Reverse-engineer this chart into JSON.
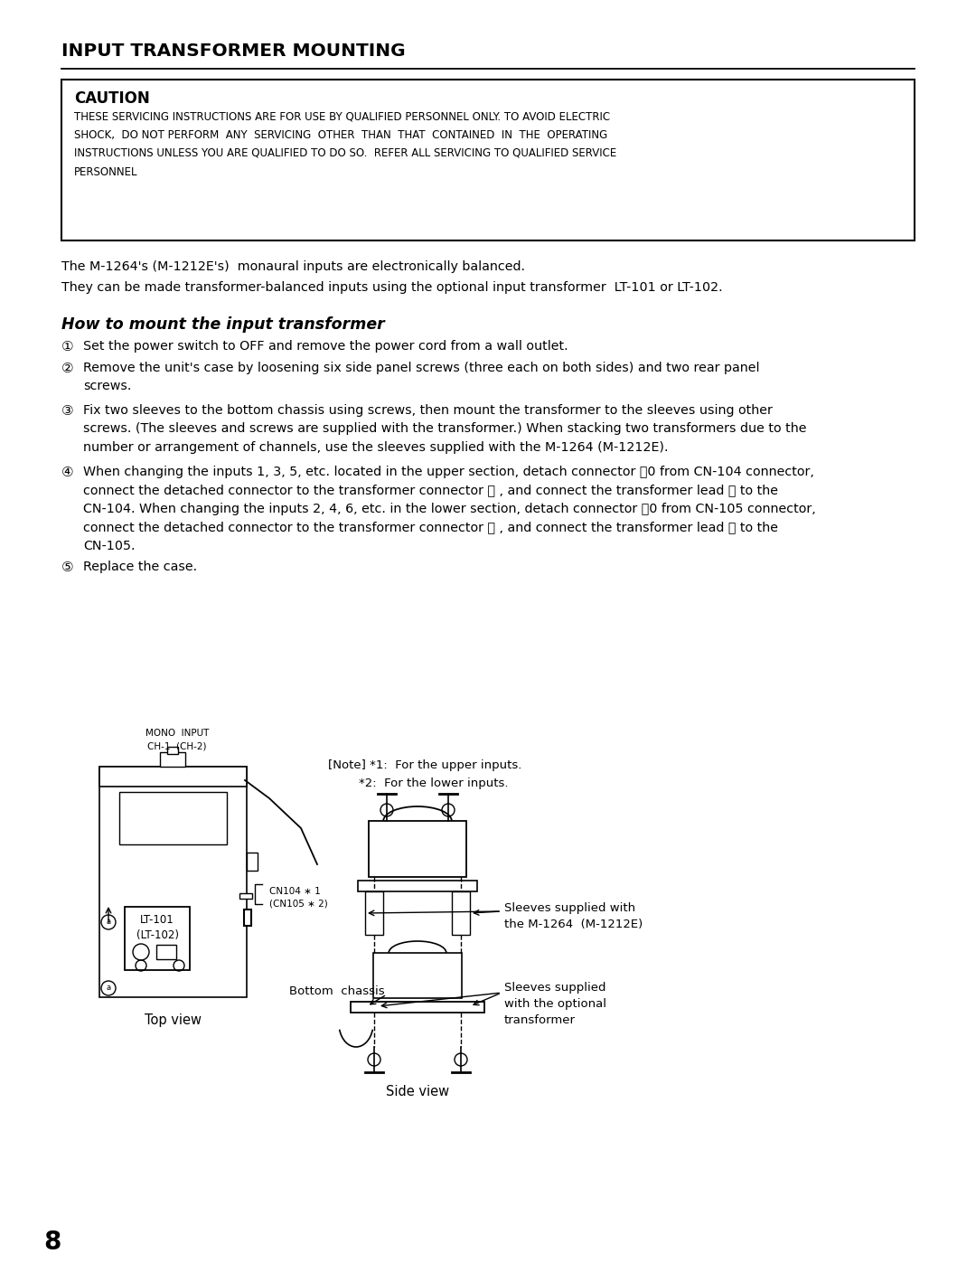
{
  "title": "INPUT TRANSFORMER MOUNTING",
  "caution_title": "CAUTION",
  "caution_body": "THESE SERVICING INSTRUCTIONS ARE FOR USE BY QUALIFIED PERSONNEL ONLY. TO AVOID ELECTRIC\nSHOCK,  DO NOT PERFORM  ANY  SERVICING  OTHER  THAN  THAT  CONTAINED  IN  THE  OPERATING\nINSTRUCTIONS UNLESS YOU ARE QUALIFIED TO DO SO.  REFER ALL SERVICING TO QUALIFIED SERVICE\nPERSONNEL",
  "intro1": "The M-1264's (M-1212E's)  monaural inputs are electronically balanced.",
  "intro2": "They can be made transformer-balanced inputs using the optional input transformer  LT-101 or LT-102.",
  "section_title": "How to mount the input transformer",
  "step1": "Set the power switch to OFF and remove the power cord from a wall outlet.",
  "step2": "Remove the unit's case by loosening six side panel screws (three each on both sides) and two rear panel\nscrews.",
  "step3": "Fix two sleeves to the bottom chassis using screws, then mount the transformer to the sleeves using other\nscrews. (The sleeves and screws are supplied with the transformer.) When stacking two transformers due to the\nnumber or arrangement of channels, use the sleeves supplied with the M-1264 (M-1212E).",
  "step4": "When changing the inputs 1, 3, 5, etc. located in the upper section, detach connector ␶0 from CN-104 connector,\nconnect the detached connector to the transformer connector Ⓑ , and connect the transformer lead Ⓒ to the\nCN-104. When changing the inputs 2, 4, 6, etc. in the lower section, detach connector ␶0 from CN-105 connector,\nconnect the detached connector to the transformer connector Ⓑ , and connect the transformer lead Ⓒ to the\nCN-105.",
  "step5": "Replace the case.",
  "note_text1": "[Note] *1:  For the upper inputs.",
  "note_text2": "        *2:  For the lower inputs.",
  "mono_input_label": "MONO  INPUT\nCH-1  (CH-2)",
  "cn104_label": "CN104 ∗ 1\n(CN105 ∗ 2)",
  "lt101_label": "LT-101\n(LT-102)",
  "bottom_chassis_label": "Bottom  chassis",
  "sleeves_m1264_label": "Sleeves supplied with\nthe M-1264  (M-1212E)",
  "sleeves_opt_label": "Sleeves supplied\nwith the optional\ntransformer",
  "top_view_label": "Top view",
  "side_view_label": "Side view",
  "page_number": "8",
  "bg_color": "#ffffff",
  "fg_color": "#000000"
}
